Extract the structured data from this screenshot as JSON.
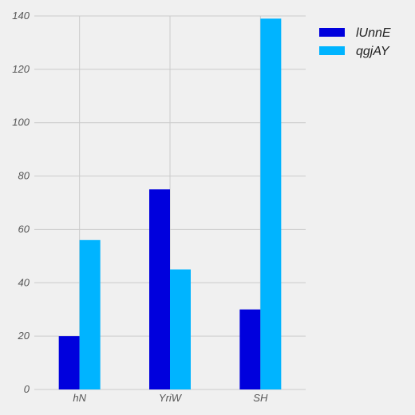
{
  "chart_data": {
    "type": "bar",
    "categories": [
      "hN",
      "YriW",
      "SH"
    ],
    "series": [
      {
        "name": "lUnnE",
        "values": [
          20,
          75,
          30
        ],
        "color": "#0000dd"
      },
      {
        "name": "qgjAY",
        "values": [
          56,
          45,
          139
        ],
        "color": "#00b4ff"
      }
    ],
    "yticks": [
      0,
      20,
      40,
      60,
      80,
      100,
      120,
      140
    ],
    "ylim": [
      0,
      140
    ],
    "grid": true,
    "legend_position": "top-right",
    "background": "#f0f0f0",
    "grid_color": "#cbcbcb"
  }
}
